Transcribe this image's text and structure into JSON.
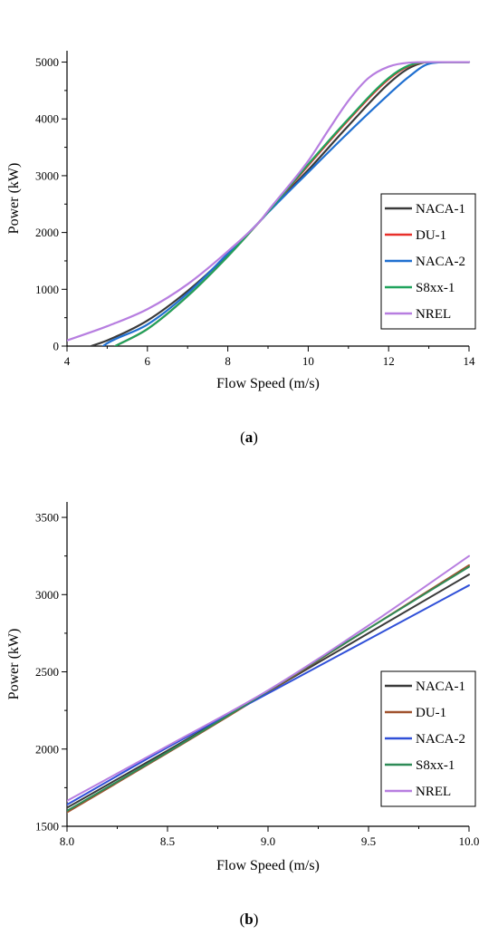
{
  "chart_data": [
    {
      "panel": "(a)",
      "panel_label_pre": "(",
      "panel_label_letter": "a",
      "panel_label_post": ")",
      "type": "line",
      "xlabel": "Flow Speed (m/s)",
      "ylabel": "Power (kW)",
      "xlim": [
        4,
        14
      ],
      "ylim": [
        0,
        5200
      ],
      "xticks": [
        4,
        6,
        8,
        10,
        12,
        14
      ],
      "yticks": [
        0,
        1000,
        2000,
        3000,
        4000,
        5000
      ],
      "grid": false,
      "legend_position": "right",
      "series": [
        {
          "name": "NACA-1",
          "color": "#3a3a3a",
          "x": [
            4.6,
            5,
            6,
            7,
            8,
            8.8,
            9,
            10,
            11,
            12,
            12.5,
            13,
            13.3,
            14
          ],
          "y": [
            0,
            100,
            450,
            970,
            1610,
            2200,
            2360,
            3100,
            3880,
            4620,
            4890,
            5000,
            5000,
            5000
          ]
        },
        {
          "name": "DU-1",
          "color": "#e8302a",
          "x": [
            5.2,
            6,
            7,
            8,
            8.8,
            9,
            10,
            11,
            12,
            12.5,
            13,
            13.3,
            14
          ],
          "y": [
            0,
            300,
            880,
            1580,
            2200,
            2360,
            3180,
            3980,
            4700,
            4930,
            5000,
            5000,
            5000
          ]
        },
        {
          "name": "NACA-2",
          "color": "#1f6fd0",
          "x": [
            4.9,
            5,
            6,
            7,
            8,
            8.8,
            9,
            10,
            11,
            12,
            12.5,
            13,
            13.5,
            14
          ],
          "y": [
            0,
            50,
            380,
            930,
            1630,
            2200,
            2350,
            3060,
            3760,
            4430,
            4740,
            4970,
            5000,
            5000
          ]
        },
        {
          "name": "S8xx-1",
          "color": "#1fa35c",
          "x": [
            5.2,
            6,
            7,
            8,
            8.8,
            9,
            10,
            11,
            12,
            12.5,
            13,
            13.3,
            14
          ],
          "y": [
            0,
            300,
            880,
            1580,
            2200,
            2360,
            3200,
            4000,
            4720,
            4940,
            5000,
            5000,
            5000
          ]
        },
        {
          "name": "NREL",
          "color": "#b77ee0",
          "x": [
            4,
            5,
            6,
            7,
            8,
            8.8,
            9,
            10,
            10.5,
            11,
            11.5,
            12,
            12.5,
            13,
            14
          ],
          "y": [
            100,
            350,
            650,
            1090,
            1670,
            2200,
            2380,
            3260,
            3800,
            4320,
            4720,
            4920,
            4990,
            5000,
            5000
          ]
        }
      ]
    },
    {
      "panel": "(b)",
      "panel_label_pre": "(",
      "panel_label_letter": "b",
      "panel_label_post": ")",
      "type": "line",
      "xlabel": "Flow Speed (m/s)",
      "ylabel": "Power (kW)",
      "xlim": [
        8.0,
        10.0
      ],
      "ylim": [
        1500,
        3600
      ],
      "xticks": [
        "8.0",
        "8.5",
        "9.0",
        "9.5",
        "10.0"
      ],
      "yticks": [
        1500,
        2000,
        2500,
        3000,
        3500
      ],
      "grid": false,
      "legend_position": "right",
      "series": [
        {
          "name": "NACA-1",
          "color": "#3a3a3a",
          "x": [
            8.0,
            8.5,
            9.0,
            9.5,
            10.0
          ],
          "y": [
            1620,
            1990,
            2370,
            2750,
            3130
          ]
        },
        {
          "name": "DU-1",
          "color": "#a0522d",
          "x": [
            8.0,
            8.5,
            9.0,
            9.5,
            10.0
          ],
          "y": [
            1590,
            1975,
            2370,
            2780,
            3190
          ]
        },
        {
          "name": "NACA-2",
          "color": "#3050d8",
          "x": [
            8.0,
            8.5,
            9.0,
            9.5,
            10.0
          ],
          "y": [
            1640,
            2010,
            2360,
            2710,
            3060
          ]
        },
        {
          "name": "S8xx-1",
          "color": "#2e8b57",
          "x": [
            8.0,
            8.5,
            9.0,
            9.5,
            10.0
          ],
          "y": [
            1600,
            1980,
            2375,
            2780,
            3180
          ]
        },
        {
          "name": "NREL",
          "color": "#b77ee0",
          "x": [
            8.0,
            8.5,
            9.0,
            9.5,
            10.0
          ],
          "y": [
            1665,
            2020,
            2380,
            2800,
            3250
          ]
        }
      ]
    }
  ]
}
